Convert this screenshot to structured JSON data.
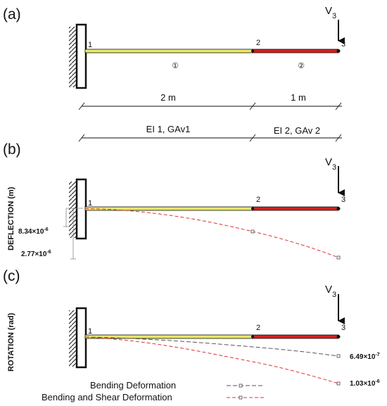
{
  "panels": {
    "a": "(a)",
    "b": "(b)",
    "c": "(c)"
  },
  "nodes": [
    "1",
    "2",
    "3"
  ],
  "elements": [
    "①",
    "②"
  ],
  "load": {
    "symbol": "V",
    "subscript": "3"
  },
  "dimensions": {
    "seg1": "2 m",
    "seg2": "1 m"
  },
  "properties": {
    "seg1": "EI 1, GAv1",
    "seg2": "EI 2, GAv 2"
  },
  "deflection": {
    "ylabel": "DEFLECTION (m)",
    "value1": {
      "mantissa": "8.34×10",
      "exp": "-6"
    },
    "value2": {
      "mantissa": "2.77×10",
      "exp": "-6"
    }
  },
  "rotation": {
    "ylabel": "ROTATION (rad)",
    "value1": {
      "mantissa": "6.49×10",
      "exp": "-7"
    },
    "value2": {
      "mantissa": "1.03×10",
      "exp": "-6"
    }
  },
  "legend": {
    "bending": "Bending Deformation",
    "bending_shear": "Bending and Shear Deformation"
  },
  "colors": {
    "segment1": "#e8e866",
    "segment2": "#d81e1e",
    "bending_curve": "#555555",
    "bending_shear_curve": "#e33030"
  }
}
